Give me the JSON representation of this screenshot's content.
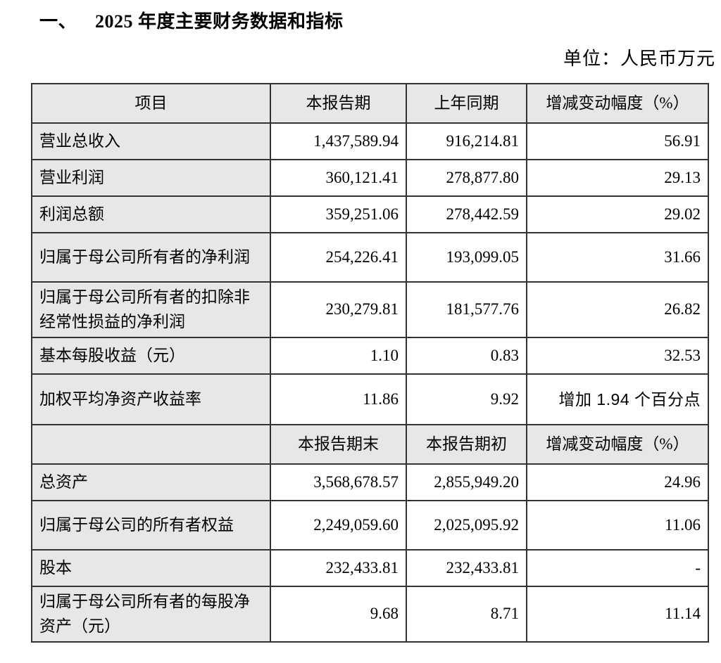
{
  "title": {
    "marker": "一、",
    "text": "2025 年度主要财务数据和指标"
  },
  "unit_label": "单位：人民币万元",
  "table": {
    "header_period": {
      "item": "项目",
      "current": "本报告期",
      "prior": "上年同期",
      "change": "增减变动幅度（%）"
    },
    "period_rows": [
      {
        "label": "营业总收入",
        "current": "1,437,589.94",
        "prior": "916,214.81",
        "change": "56.91"
      },
      {
        "label": "营业利润",
        "current": "360,121.41",
        "prior": "278,877.80",
        "change": "29.13"
      },
      {
        "label": "利润总额",
        "current": "359,251.06",
        "prior": "278,442.59",
        "change": "29.02"
      },
      {
        "label": "归属于母公司所有者的净利润",
        "current": "254,226.41",
        "prior": "193,099.05",
        "change": "31.66"
      },
      {
        "label": "归属于母公司所有者的扣除非经常性损益的净利润",
        "current": "230,279.81",
        "prior": "181,577.76",
        "change": "26.82"
      },
      {
        "label": "基本每股收益（元）",
        "current": "1.10",
        "prior": "0.83",
        "change": "32.53"
      },
      {
        "label": "加权平均净资产收益率",
        "current": "11.86",
        "prior": "9.92",
        "change": "增加 1.94 个百分点"
      }
    ],
    "header_balance": {
      "item": "",
      "current": "本报告期末",
      "prior": "本报告期初",
      "change": "增减变动幅度（%）"
    },
    "balance_rows": [
      {
        "label": "总资产",
        "current": "3,568,678.57",
        "prior": "2,855,949.20",
        "change": "24.96"
      },
      {
        "label": "归属于母公司的所有者权益",
        "current": "2,249,059.60",
        "prior": "2,025,095.92",
        "change": "11.06"
      },
      {
        "label": "股本",
        "current": "232,433.81",
        "prior": "232,433.81",
        "change": "-"
      },
      {
        "label": "归属于母公司所有者的每股净资产（元）",
        "current": "9.68",
        "prior": "8.71",
        "change": "11.14"
      }
    ]
  }
}
